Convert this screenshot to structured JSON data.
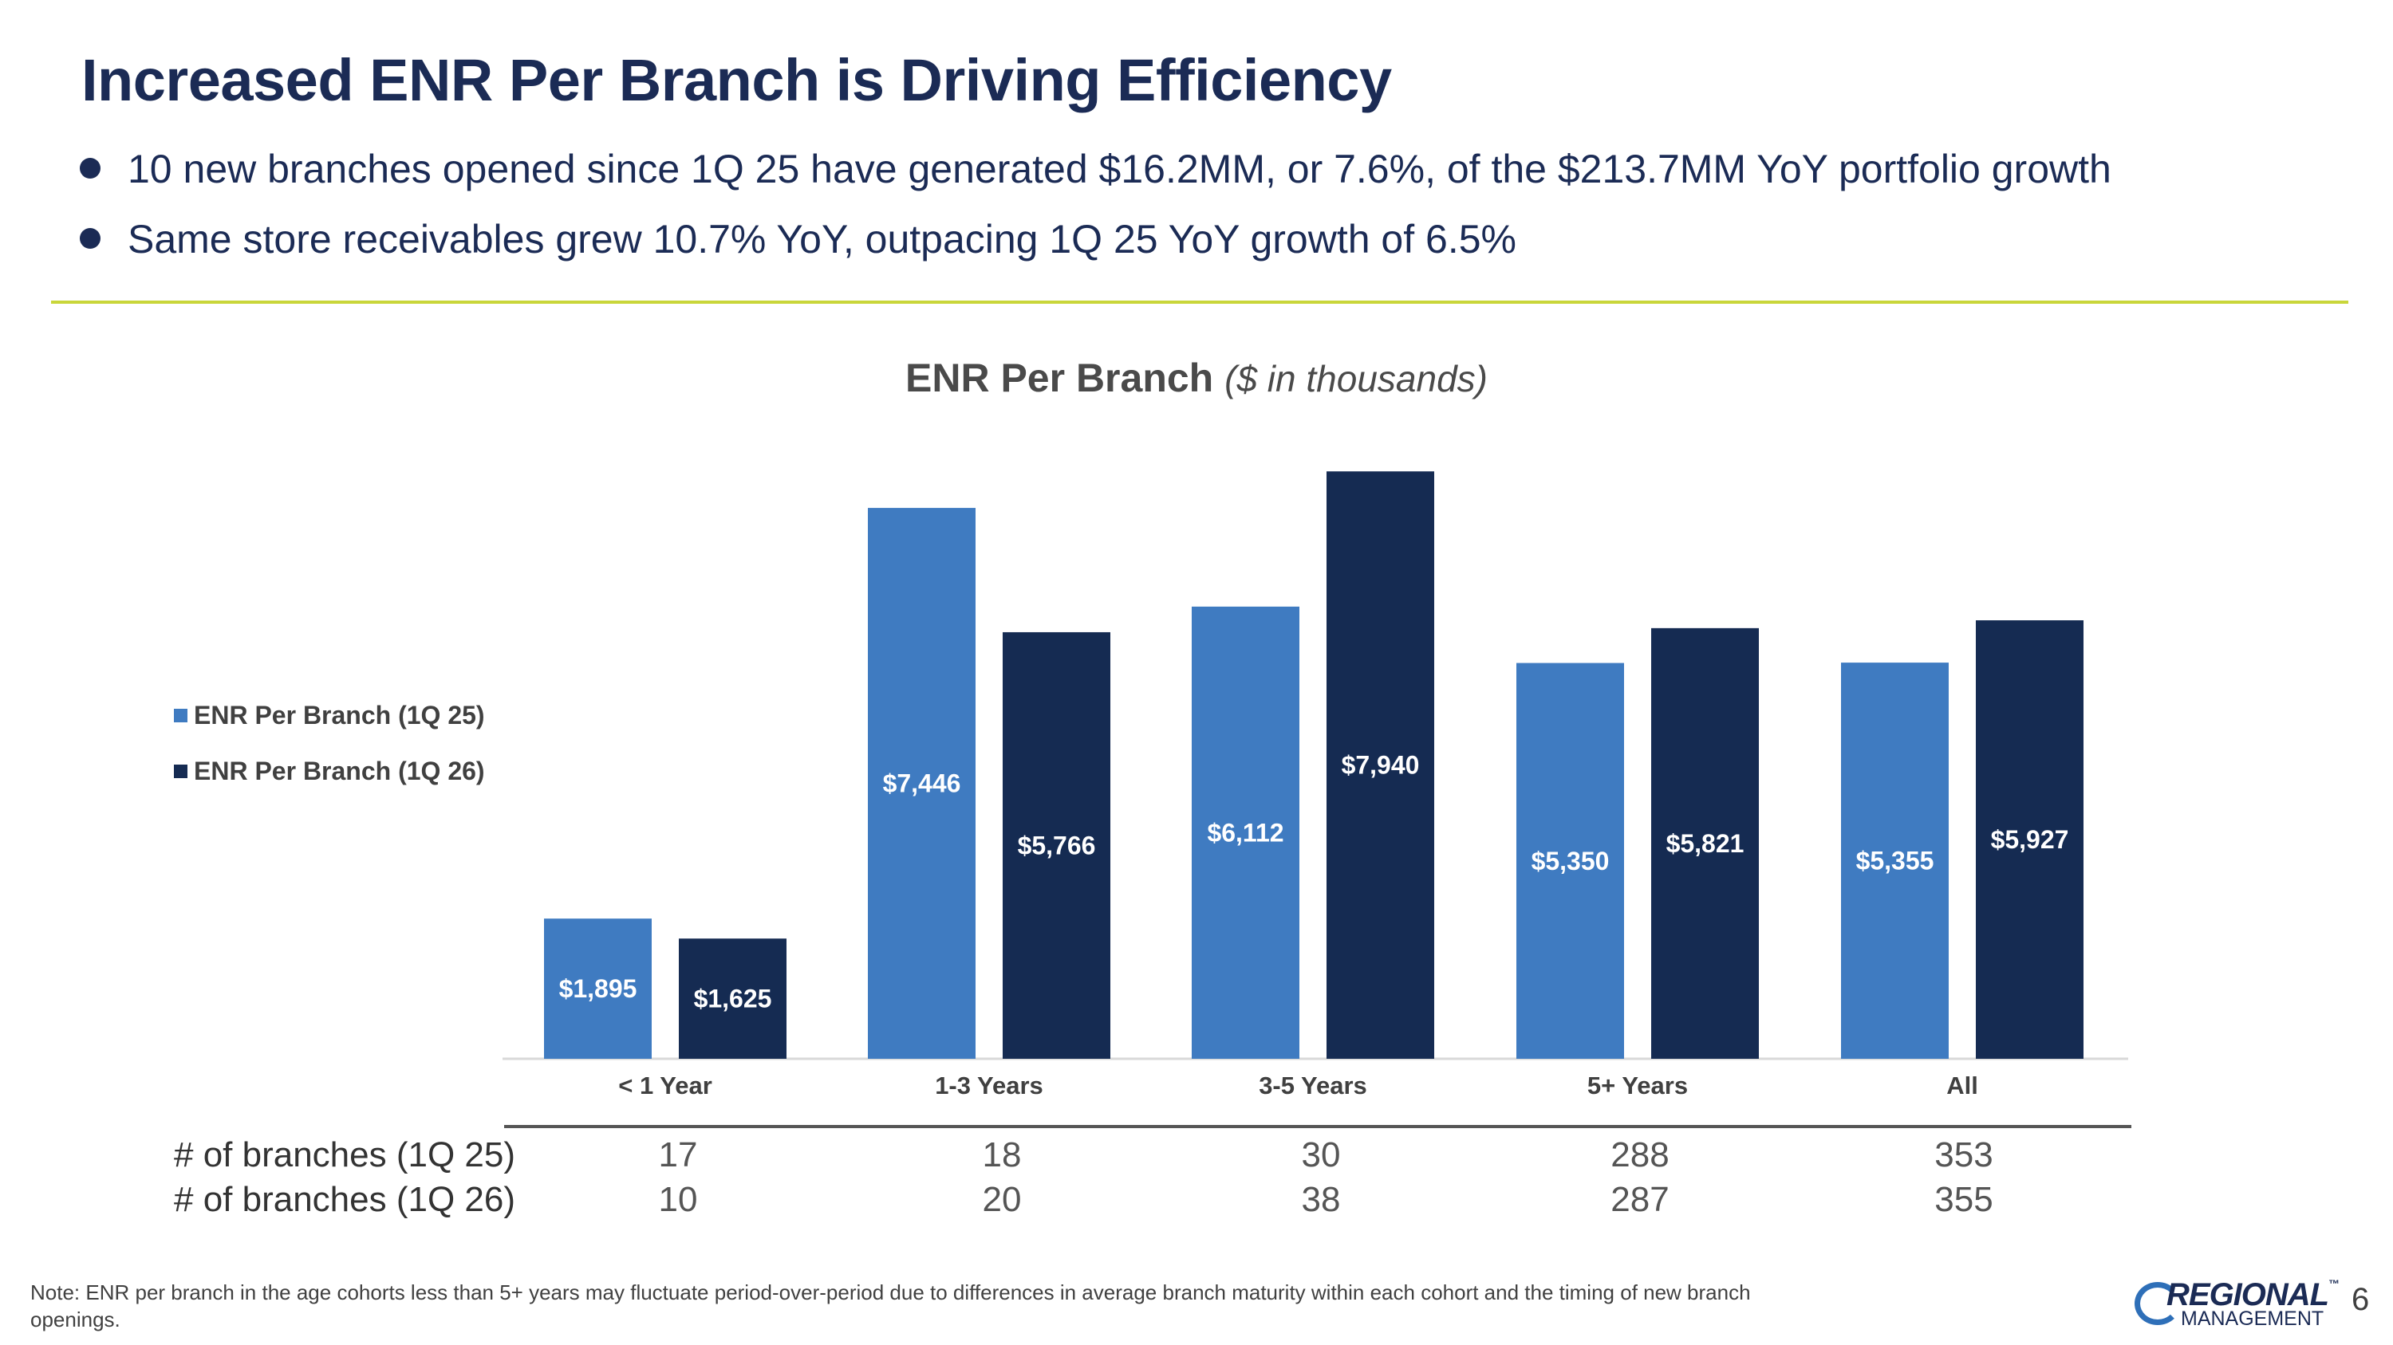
{
  "slide": {
    "title": "Increased ENR Per Branch is Driving Efficiency",
    "bullets": [
      "10 new branches opened since 1Q 25 have generated $16.2MM, or 7.6%, of the $213.7MM YoY portfolio growth",
      "Same store receivables grew 10.7% YoY, outpacing 1Q 25 YoY growth of 6.5%"
    ],
    "note": "Note:  ENR per branch in the age cohorts less than 5+ years may fluctuate period-over-period due to differences in average branch maturity within each cohort and the timing of new branch openings.",
    "page_number": "6",
    "logo": {
      "line1": "REGIONAL",
      "line2": "MANAGEMENT",
      "tm": "™"
    }
  },
  "colors": {
    "series_1": "#3f7bc1",
    "series_2": "#152b52",
    "accent_rule": "#c9d63a",
    "title": "#1b2b55"
  },
  "chart_data": {
    "type": "bar",
    "title": "ENR Per Branch",
    "subtitle": "($ in thousands)",
    "categories": [
      "< 1 Year",
      "1-3 Years",
      "3-5 Years",
      "5+ Years",
      "All"
    ],
    "series": [
      {
        "name": "ENR Per Branch (1Q 25)",
        "values": [
          1895,
          7446,
          6112,
          5350,
          5355
        ],
        "labels": [
          "$1,895",
          "$7,446",
          "$6,112",
          "$5,350",
          "$5,355"
        ]
      },
      {
        "name": "ENR Per Branch (1Q 26)",
        "values": [
          1625,
          5766,
          7940,
          5821,
          5927
        ],
        "labels": [
          "$1,625",
          "$5,766",
          "$7,940",
          "$5,821",
          "$5,927"
        ]
      }
    ],
    "ylim": [
      0,
      8600
    ],
    "legend": "left",
    "grid": false
  },
  "table": {
    "rows": [
      {
        "label": "# of branches (1Q 25)",
        "values": [
          "17",
          "18",
          "30",
          "288",
          "353"
        ]
      },
      {
        "label": "# of branches (1Q 26)",
        "values": [
          "10",
          "20",
          "38",
          "287",
          "355"
        ]
      }
    ]
  }
}
